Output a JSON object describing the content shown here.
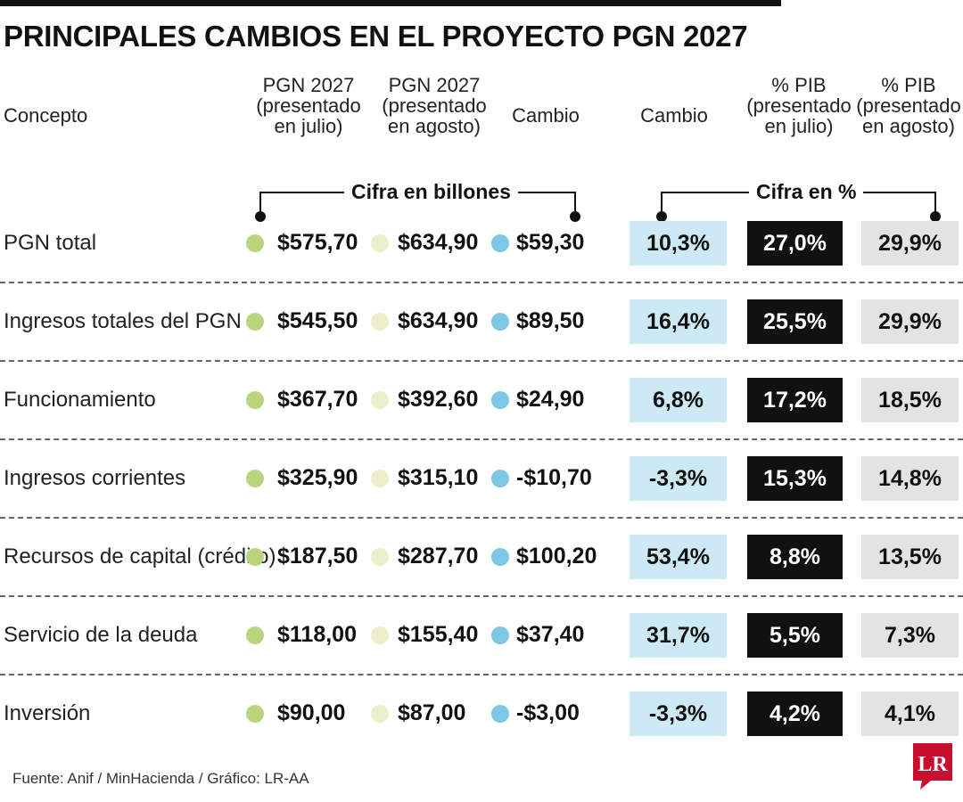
{
  "title": "PRINCIPALES CAMBIOS EN EL PROYECTO PGN 2027",
  "columns": {
    "concepto": "Concepto",
    "julio": [
      "PGN 2027",
      "(presentado",
      "en julio)"
    ],
    "agosto": [
      "PGN 2027",
      "(presentado",
      "en agosto)"
    ],
    "cambio": [
      "Cambio"
    ],
    "cambio_pct": [
      "Cambio"
    ],
    "pib_julio": [
      "% PIB",
      "(presentado",
      "en julio)"
    ],
    "pib_agosto": [
      "% PIB",
      "(presentado",
      "en agosto)"
    ]
  },
  "groups": {
    "billones": "Cifra en billones",
    "porcentaje": "Cifra en %"
  },
  "colors": {
    "julio_dot": "#b9d47c",
    "agosto_dot": "#ecefc9",
    "cambio_dot": "#7ec8e3",
    "cambio_box": "#cde9f4",
    "pib_julio_box": "#111111",
    "pib_agosto_box": "#e3e3e3"
  },
  "chart_data": {
    "type": "table",
    "title": "PRINCIPALES CAMBIOS EN EL PROYECTO PGN 2027",
    "rows": [
      {
        "concepto": "PGN total",
        "julio": "$575,70",
        "agosto": "$634,90",
        "cambio": "$59,30",
        "cambio_pct": "10,3%",
        "pib_julio": "27,0%",
        "pib_agosto": "29,9%"
      },
      {
        "concepto": "Ingresos totales del PGN",
        "julio": "$545,50",
        "agosto": "$634,90",
        "cambio": "$89,50",
        "cambio_pct": "16,4%",
        "pib_julio": "25,5%",
        "pib_agosto": "29,9%"
      },
      {
        "concepto": "Funcionamiento",
        "julio": "$367,70",
        "agosto": "$392,60",
        "cambio": "$24,90",
        "cambio_pct": "6,8%",
        "pib_julio": "17,2%",
        "pib_agosto": "18,5%"
      },
      {
        "concepto": "Ingresos corrientes",
        "julio": "$325,90",
        "agosto": "$315,10",
        "cambio": "-$10,70",
        "cambio_pct": "-3,3%",
        "pib_julio": "15,3%",
        "pib_agosto": "14,8%"
      },
      {
        "concepto": "Recursos de capital (crédito)",
        "julio": "$187,50",
        "agosto": "$287,70",
        "cambio": "$100,20",
        "cambio_pct": "53,4%",
        "pib_julio": "8,8%",
        "pib_agosto": "13,5%"
      },
      {
        "concepto": "Servicio de la deuda",
        "julio": "$118,00",
        "agosto": "$155,40",
        "cambio": "$37,40",
        "cambio_pct": "31,7%",
        "pib_julio": "5,5%",
        "pib_agosto": "7,3%"
      },
      {
        "concepto": "Inversión",
        "julio": "$90,00",
        "agosto": "$87,00",
        "cambio": "-$3,00",
        "cambio_pct": "-3,3%",
        "pib_julio": "4,2%",
        "pib_agosto": "4,1%"
      }
    ]
  },
  "footer": {
    "source": "Fuente: Anif / MinHacienda / Gráfico: LR-AA",
    "logo": "LR"
  }
}
